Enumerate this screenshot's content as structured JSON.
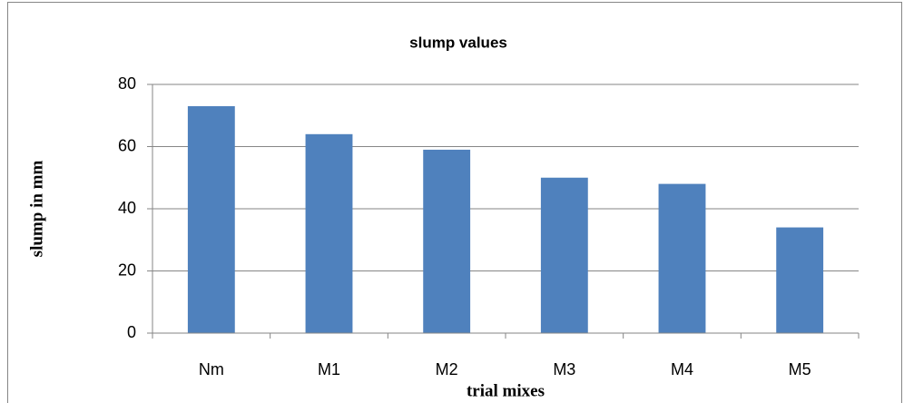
{
  "chart_data": {
    "type": "bar",
    "title": "slump values",
    "x_label": "trial mixes",
    "y_label": "slump in mm",
    "categories": [
      "Nm",
      "M1",
      "M2",
      "M3",
      "M4",
      "M5"
    ],
    "values": [
      73,
      64,
      59,
      50,
      48,
      34
    ],
    "color": "#4f81bd",
    "ylim": [
      0,
      80
    ],
    "yticks": [
      0,
      20,
      40,
      60,
      80
    ],
    "grid": true
  }
}
